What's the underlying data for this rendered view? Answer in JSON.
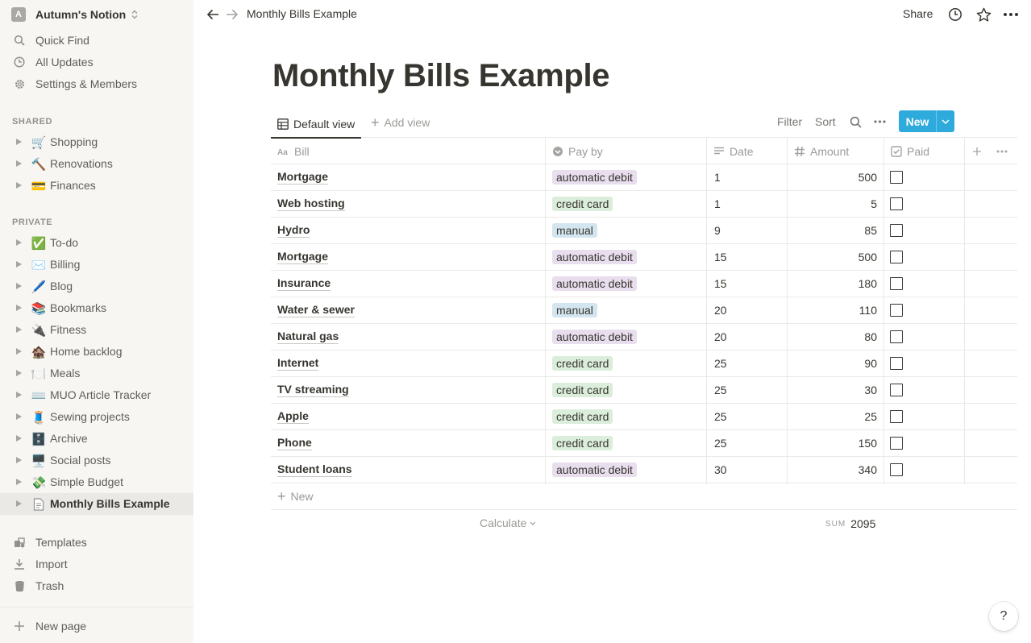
{
  "workspace": {
    "avatar_letter": "A",
    "name": "Autumn's Notion"
  },
  "sidebar": {
    "top_items": [
      {
        "label": "Quick Find",
        "icon": "search-icon"
      },
      {
        "label": "All Updates",
        "icon": "clock-icon"
      },
      {
        "label": "Settings & Members",
        "icon": "gear-icon"
      }
    ],
    "shared_heading": "SHARED",
    "shared": [
      {
        "emoji": "🛒",
        "label": "Shopping"
      },
      {
        "emoji": "🔨",
        "label": "Renovations"
      },
      {
        "emoji": "💳",
        "label": "Finances"
      }
    ],
    "private_heading": "PRIVATE",
    "private": [
      {
        "emoji": "✅",
        "label": "To-do"
      },
      {
        "emoji": "✉️",
        "label": "Billing"
      },
      {
        "emoji": "🖊️",
        "label": "Blog"
      },
      {
        "emoji": "📚",
        "label": "Bookmarks"
      },
      {
        "emoji": "🔌",
        "label": "Fitness"
      },
      {
        "emoji": "🏚️",
        "label": "Home backlog"
      },
      {
        "emoji": "🍽️",
        "label": "Meals"
      },
      {
        "emoji": "⌨️",
        "label": "MUO Article Tracker"
      },
      {
        "emoji": "🧵",
        "label": "Sewing projects"
      },
      {
        "emoji": "🗄️",
        "label": "Archive"
      },
      {
        "emoji": "🖥️",
        "label": "Social posts"
      },
      {
        "emoji": "💸",
        "label": "Simple Budget"
      },
      {
        "emoji": "📄",
        "label": "Monthly Bills Example"
      }
    ],
    "bottom_items": [
      {
        "label": "Templates",
        "icon": "templates-icon"
      },
      {
        "label": "Import",
        "icon": "import-icon"
      },
      {
        "label": "Trash",
        "icon": "trash-icon"
      }
    ],
    "new_page": "New page"
  },
  "topbar": {
    "breadcrumb": "Monthly Bills Example",
    "share": "Share"
  },
  "page": {
    "title": "Monthly Bills Example"
  },
  "viewbar": {
    "default_view": "Default view",
    "add_view": "Add view",
    "filter": "Filter",
    "sort": "Sort",
    "new_button": "New"
  },
  "table": {
    "headers": {
      "bill": "Bill",
      "pay_by": "Pay by",
      "date": "Date",
      "amount": "Amount",
      "paid": "Paid"
    },
    "rows": [
      {
        "bill": "Mortgage",
        "pay_by": "automatic debit",
        "date": "1",
        "amount": "500"
      },
      {
        "bill": "Web hosting",
        "pay_by": "credit card",
        "date": "1",
        "amount": "5"
      },
      {
        "bill": "Hydro",
        "pay_by": "manual",
        "date": "9",
        "amount": "85"
      },
      {
        "bill": "Mortgage",
        "pay_by": "automatic debit",
        "date": "15",
        "amount": "500"
      },
      {
        "bill": "Insurance",
        "pay_by": "automatic debit",
        "date": "15",
        "amount": "180"
      },
      {
        "bill": "Water & sewer",
        "pay_by": "manual",
        "date": "20",
        "amount": "110"
      },
      {
        "bill": "Natural gas",
        "pay_by": "automatic debit",
        "date": "20",
        "amount": "80"
      },
      {
        "bill": "Internet",
        "pay_by": "credit card",
        "date": "25",
        "amount": "90"
      },
      {
        "bill": "TV streaming",
        "pay_by": "credit card",
        "date": "25",
        "amount": "30"
      },
      {
        "bill": "Apple",
        "pay_by": "credit card",
        "date": "25",
        "amount": "25"
      },
      {
        "bill": "Phone",
        "pay_by": "credit card",
        "date": "25",
        "amount": "150"
      },
      {
        "bill": "Student loans",
        "pay_by": "automatic debit",
        "date": "30",
        "amount": "340"
      }
    ],
    "tag_colors": {
      "automatic debit": "#e8deee",
      "credit card": "#dbeddb",
      "manual": "#d3e5ef"
    },
    "new_row": "New",
    "calculate": "Calculate",
    "sum_label": "SUM",
    "sum_value": "2095"
  },
  "help": "?"
}
